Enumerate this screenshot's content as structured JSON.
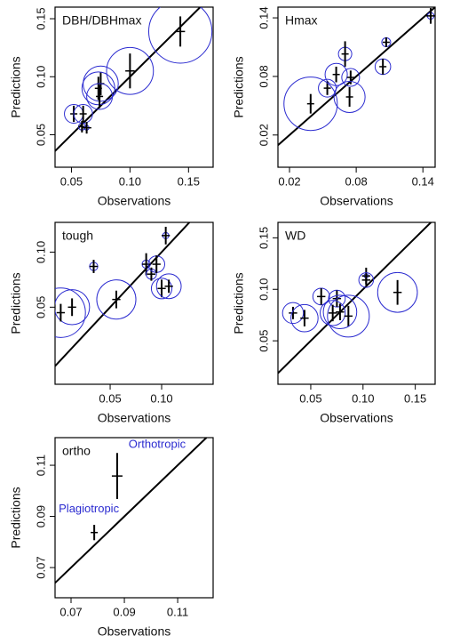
{
  "chart_data": [
    {
      "type": "scatter",
      "title": "DBH/DBHmax",
      "x_label": "Observations",
      "y_label": "Predictions",
      "xlim": [
        0.036,
        0.171
      ],
      "ylim": [
        0.022,
        0.16
      ],
      "xticks": [
        0.05,
        {
          "value": 0.1,
          "label": "0.10"
        },
        0.15
      ],
      "yticks": [
        0.05,
        {
          "value": 0.1,
          "label": "0.10"
        },
        0.15
      ],
      "x": [
        0.143,
        0.1,
        0.075,
        0.073,
        0.074,
        0.052,
        0.06,
        0.059,
        0.063
      ],
      "y": [
        0.139,
        0.105,
        0.094,
        0.09,
        0.083,
        0.068,
        0.068,
        0.057,
        0.056
      ],
      "y_err": [
        0.013,
        0.015,
        0.01,
        0.01,
        0.01,
        0.007,
        0.007,
        0.005,
        0.005
      ],
      "x_err": [
        0.004,
        0.004,
        0.003,
        0.003,
        0.003,
        0.003,
        0.003,
        0.003,
        0.004
      ],
      "sizes": [
        0.027,
        0.02,
        0.015,
        0.014,
        0.011,
        0.008,
        0.008,
        0.003,
        0.002
      ],
      "color": "#2b2bd0"
    },
    {
      "type": "scatter",
      "title": "Hmax",
      "x_label": "Observations",
      "y_label": "Predictions",
      "xlim": [
        0.0096,
        0.151
      ],
      "ylim": [
        -0.013,
        0.151
      ],
      "xticks": [
        0.02,
        0.08,
        0.14
      ],
      "yticks": [
        0.02,
        0.08,
        0.14
      ],
      "x": [
        0.147,
        0.107,
        0.104,
        0.07,
        0.062,
        0.075,
        0.054,
        0.074,
        0.039
      ],
      "y": [
        0.142,
        0.115,
        0.09,
        0.103,
        0.082,
        0.079,
        0.068,
        0.059,
        0.052
      ],
      "y_err": [
        0.008,
        0.005,
        0.008,
        0.013,
        0.008,
        0.007,
        0.007,
        0.01,
        0.01
      ],
      "x_err": [
        0.004,
        0.003,
        0.003,
        0.003,
        0.003,
        0.003,
        0.003,
        0.003,
        0.003
      ],
      "sizes": [
        0.003,
        0.004,
        0.007,
        0.006,
        0.01,
        0.008,
        0.008,
        0.014,
        0.024
      ],
      "color": "#2b2bd0"
    },
    {
      "type": "scatter",
      "title": "tough",
      "x_label": "Observations",
      "y_label": "Predictions",
      "xlim": [
        -0.0035,
        0.15
      ],
      "ylim": [
        -0.02,
        0.127
      ],
      "xticks": [
        0.05,
        {
          "value": 0.1,
          "label": "0.10"
        }
      ],
      "yticks": [
        0.05,
        {
          "value": 0.1,
          "label": "0.10"
        }
      ],
      "x": [
        0.104,
        0.034,
        0.085,
        0.09,
        0.095,
        0.1,
        0.107,
        0.056,
        0.013,
        0.002
      ],
      "y": [
        0.115,
        0.087,
        0.089,
        0.08,
        0.089,
        0.067,
        0.069,
        0.057,
        0.05,
        0.045
      ],
      "y_err": [
        0.008,
        0.006,
        0.01,
        0.006,
        0.008,
        0.008,
        0.006,
        0.008,
        0.008,
        0.008
      ],
      "x_err": [
        0.004,
        0.004,
        0.004,
        0.004,
        0.004,
        0.004,
        0.004,
        0.004,
        0.004,
        0.004
      ],
      "sizes": [
        0.003,
        0.004,
        0.004,
        0.005,
        0.008,
        0.01,
        0.012,
        0.019,
        0.017,
        0.024
      ],
      "color": "#2b2bd0"
    },
    {
      "type": "scatter",
      "title": "WD",
      "x_label": "Observations",
      "y_label": "Predictions",
      "xlim": [
        0.0186,
        0.169
      ],
      "ylim": [
        0.0078,
        0.165
      ],
      "xticks": [
        0.05,
        {
          "value": 0.1,
          "label": "0.10"
        },
        0.15
      ],
      "yticks": [
        0.05,
        {
          "value": 0.1,
          "label": "0.10"
        },
        0.15
      ],
      "x": [
        0.103,
        0.103,
        0.133,
        0.06,
        0.075,
        0.033,
        0.044,
        0.071,
        0.086,
        0.078
      ],
      "y": [
        0.113,
        0.109,
        0.097,
        0.093,
        0.091,
        0.077,
        0.072,
        0.077,
        0.074,
        0.078
      ],
      "y_err": [
        0.008,
        0.005,
        0.012,
        0.008,
        0.008,
        0.006,
        0.008,
        0.008,
        0.01,
        0.008
      ],
      "x_err": [
        0.004,
        0.004,
        0.004,
        0.004,
        0.004,
        0.004,
        0.004,
        0.004,
        0.004,
        0.004
      ],
      "sizes": [
        0.002,
        0.007,
        0.019,
        0.008,
        0.008,
        0.01,
        0.013,
        0.012,
        0.02,
        0.016
      ],
      "color": "#2b2bd0"
    },
    {
      "type": "scatter",
      "title": "ortho",
      "x_label": "Observations",
      "y_label": "Predictions",
      "xlim": [
        0.064,
        0.1233
      ],
      "ylim": [
        0.0582,
        0.1208
      ],
      "xticks": [
        0.07,
        0.09,
        0.11
      ],
      "yticks": [
        0.07,
        0.09,
        0.11
      ],
      "x": [
        0.0787,
        0.0873
      ],
      "y": [
        0.0837,
        0.1058
      ],
      "y_err": [
        0.003,
        0.009
      ],
      "x_err": [
        0,
        0.002
      ],
      "point_labels": [
        "Plagiotropic",
        "Orthotropic"
      ],
      "color": "#2b2bd0"
    }
  ]
}
